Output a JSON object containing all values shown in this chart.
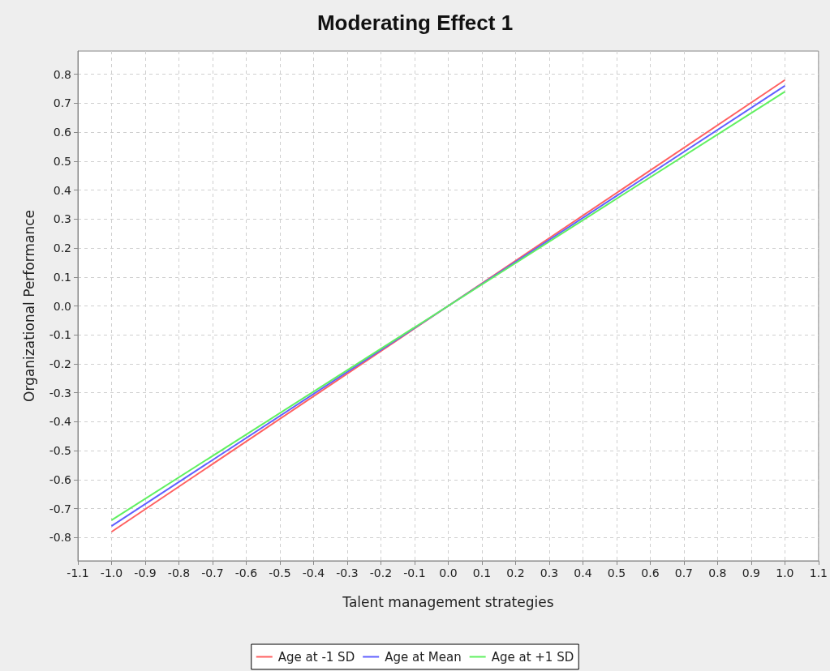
{
  "chart_data": {
    "type": "line",
    "title": "Moderating Effect 1",
    "xlabel": "Talent management strategies",
    "ylabel": "Organizational Performance",
    "x": [
      -1.0,
      1.0
    ],
    "series": [
      {
        "name": "Age at -1 SD",
        "color": "#ff6060",
        "values": [
          -0.78,
          0.78
        ]
      },
      {
        "name": "Age at Mean",
        "color": "#6060ff",
        "values": [
          -0.76,
          0.76
        ]
      },
      {
        "name": "Age at +1 SD",
        "color": "#60f060",
        "values": [
          -0.74,
          0.74
        ]
      }
    ],
    "xlim": [
      -1.1,
      1.1
    ],
    "xticks": [
      -1.1,
      {
        "value": -1.0,
        "label": "-1.0"
      },
      -0.9,
      -0.8,
      -0.7,
      -0.6,
      -0.5,
      -0.4,
      -0.3,
      -0.2,
      -0.1,
      {
        "value": 0,
        "label": "0.0"
      },
      0.1,
      0.2,
      0.3,
      0.4,
      0.5,
      0.6,
      0.7,
      0.8,
      0.9,
      {
        "value": 1.0,
        "label": "1.0"
      },
      1.1
    ],
    "ylim": [
      -0.88,
      0.88
    ],
    "yticks": [
      -0.8,
      -0.7,
      -0.6,
      -0.5,
      -0.4,
      -0.3,
      -0.2,
      -0.1,
      {
        "value": 0,
        "label": "0.0"
      },
      0.1,
      0.2,
      0.3,
      0.4,
      0.5,
      0.6,
      0.7,
      0.8
    ],
    "grid": true,
    "legend": "bottom",
    "marker": "none",
    "line_style": "solid"
  }
}
